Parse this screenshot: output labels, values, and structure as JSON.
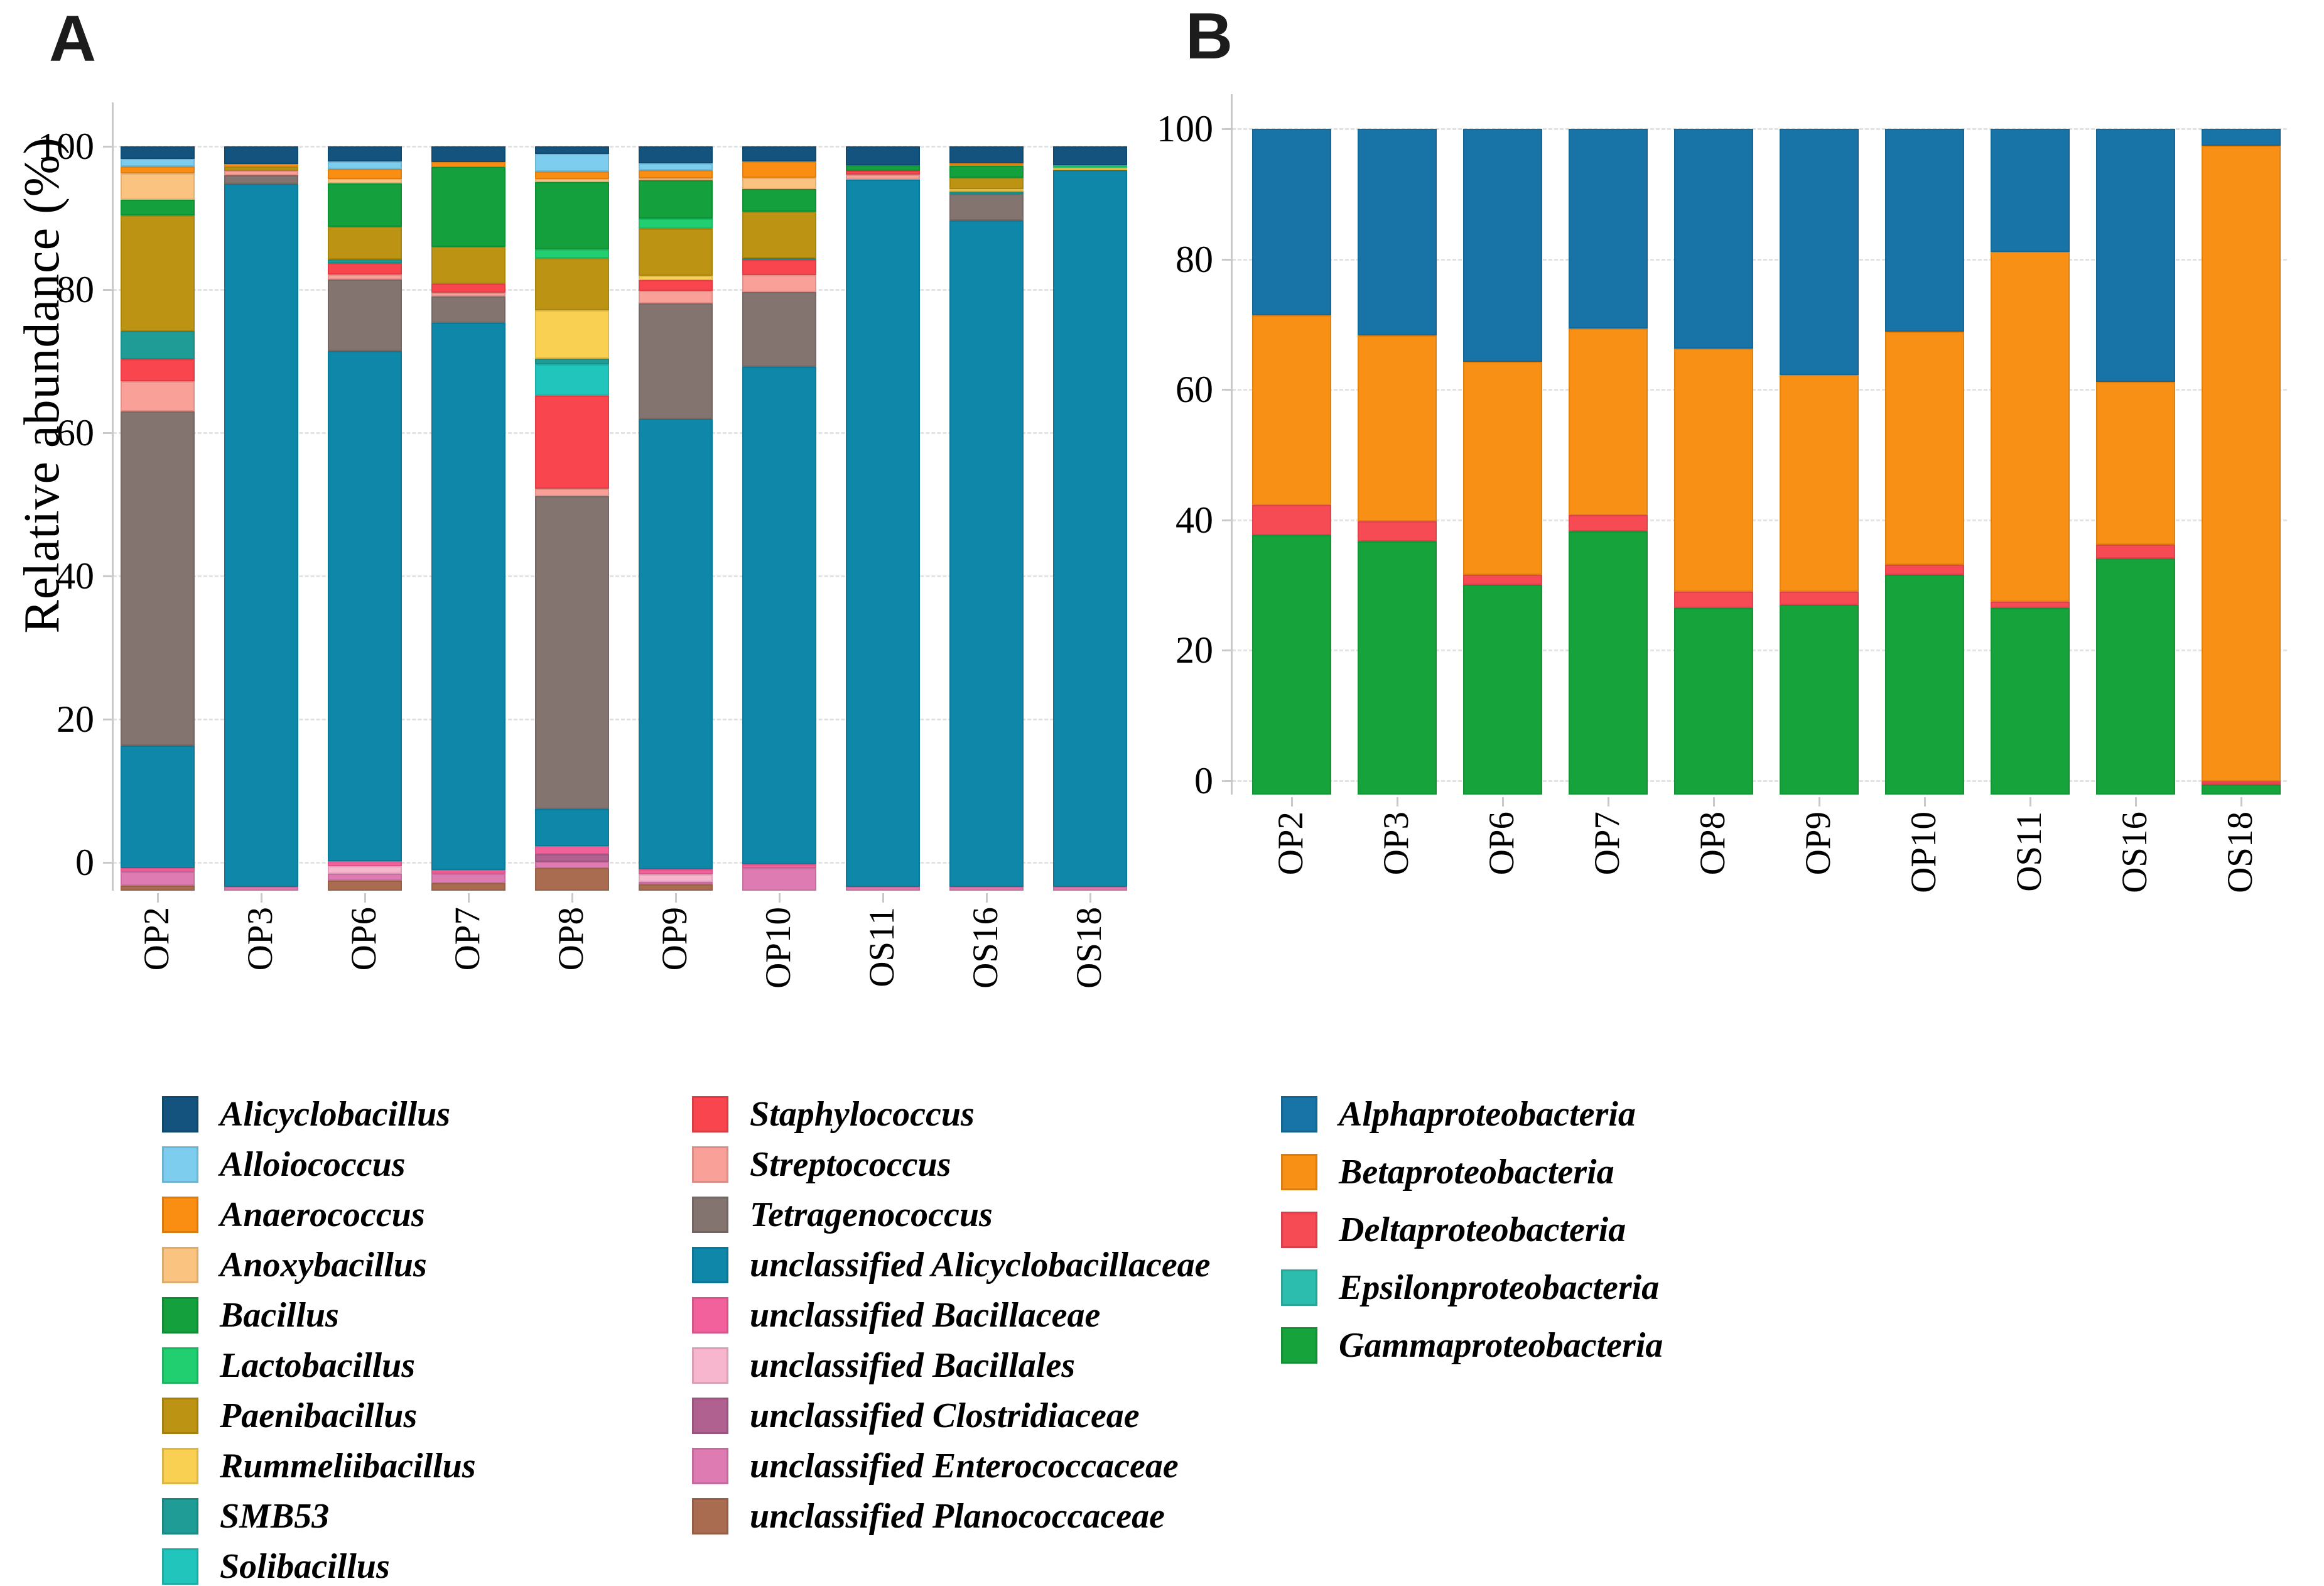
{
  "figure": {
    "panel_a_letter": "A",
    "panel_b_letter": "B",
    "ylabel": "Relative abundance (%)"
  },
  "chart_data": [
    {
      "panel": "A",
      "type": "bar",
      "stacked": true,
      "title": "A",
      "ylabel": "Relative abundance (%)",
      "ylim": [
        0,
        100
      ],
      "yticks": [
        100,
        80,
        60,
        40,
        20,
        0
      ],
      "grid": true,
      "legend_position": "bottom-left",
      "categories": [
        "OP2",
        "OP3",
        "OP6",
        "OP7",
        "OP8",
        "OP9",
        "OP10",
        "OS11",
        "OS16",
        "OS18"
      ],
      "series": [
        {
          "name": "Alicyclobacillus",
          "color": "#14537D",
          "values": [
            1.7,
            2.4,
            2.0,
            2.1,
            1.0,
            2.3,
            2.0,
            2.5,
            2.3,
            2.5
          ]
        },
        {
          "name": "Alloiococcus",
          "color": "#7CCDEE",
          "values": [
            1.0,
            0,
            1.0,
            0,
            2.4,
            0.9,
            0,
            0,
            0,
            0
          ]
        },
        {
          "name": "Anaerococcus",
          "color": "#F98E13",
          "values": [
            0.9,
            0.4,
            1.4,
            0.7,
            1.0,
            1.1,
            2.2,
            0,
            0.3,
            0
          ]
        },
        {
          "name": "Anoxybacillus",
          "color": "#FBC380",
          "values": [
            3.6,
            0,
            0.6,
            0,
            0.4,
            0.3,
            1.5,
            0,
            0,
            0
          ]
        },
        {
          "name": "Bacillus",
          "color": "#14A03C",
          "values": [
            2.1,
            0,
            5.8,
            10.7,
            9.0,
            5.1,
            3.1,
            0.8,
            1.6,
            0
          ]
        },
        {
          "name": "Lactobacillus",
          "color": "#21CE70",
          "values": [
            0,
            0,
            0,
            0,
            1.2,
            1.4,
            0,
            0,
            0,
            0.4
          ]
        },
        {
          "name": "Paenibacillus",
          "color": "#BC9313",
          "values": [
            15.5,
            0.5,
            4.4,
            5.0,
            7.0,
            6.3,
            6.2,
            0,
            1.5,
            0
          ]
        },
        {
          "name": "Rummeliibacillus",
          "color": "#F9D052",
          "values": [
            0,
            0,
            0,
            0,
            6.5,
            0.6,
            0,
            0,
            0.4,
            0.3
          ]
        },
        {
          "name": "SMB53",
          "color": "#1E9C95",
          "values": [
            3.8,
            0,
            0.5,
            0,
            0.8,
            0,
            0.3,
            0,
            0.3,
            0
          ]
        },
        {
          "name": "Solibacillus",
          "color": "#21C5BB",
          "values": [
            0,
            0,
            0,
            0,
            4.2,
            0,
            0,
            0,
            0,
            0
          ]
        },
        {
          "name": "Staphylococcus",
          "color": "#F9464E",
          "values": [
            3.0,
            0,
            1.5,
            1.2,
            12.5,
            1.4,
            2.0,
            0.5,
            0,
            0
          ]
        },
        {
          "name": "Streptococcus",
          "color": "#F9A099",
          "values": [
            4.0,
            0.6,
            0.7,
            0.5,
            1.0,
            1.7,
            2.3,
            0.7,
            0,
            0
          ]
        },
        {
          "name": "Tetragenococcus",
          "color": "#837470",
          "values": [
            44.9,
            1.2,
            9.6,
            3.5,
            42.0,
            15.5,
            10.0,
            0,
            3.6,
            0
          ]
        },
        {
          "name": "unclassified Alicyclobacillaceae",
          "color": "#0E87A9",
          "values": [
            16.5,
            94.4,
            68.5,
            73.5,
            5.0,
            60.5,
            66.9,
            95.0,
            89.5,
            96.3
          ]
        },
        {
          "name": "unclassified Bacillaceae",
          "color": "#F2619B",
          "values": [
            0.5,
            0,
            0.7,
            0.5,
            1.1,
            0.7,
            0.5,
            0,
            0,
            0
          ]
        },
        {
          "name": "unclassified Bacillales",
          "color": "#F7B6CD",
          "values": [
            0,
            0,
            1.0,
            0,
            0,
            1.0,
            0,
            0,
            0,
            0
          ]
        },
        {
          "name": "unclassified Clostridiaceae",
          "color": "#B06190",
          "values": [
            0,
            0,
            0,
            0,
            1.0,
            0,
            0,
            0,
            0,
            0
          ]
        },
        {
          "name": "unclassified Enterococcaceae",
          "color": "#DE7BB2",
          "values": [
            1.8,
            0.5,
            1.0,
            1.3,
            0.9,
            0.4,
            3.0,
            0.5,
            0.5,
            0.5
          ]
        },
        {
          "name": "unclassified Planococcaceae",
          "color": "#AA6C50",
          "values": [
            0.7,
            0,
            1.3,
            1.0,
            3.0,
            0.8,
            0,
            0,
            0,
            0
          ]
        }
      ]
    },
    {
      "panel": "B",
      "type": "bar",
      "stacked": true,
      "title": "B",
      "ylabel": "",
      "ylim": [
        0,
        100
      ],
      "yticks": [
        100,
        80,
        60,
        40,
        20,
        0
      ],
      "grid": true,
      "legend_position": "bottom-left",
      "categories": [
        "OP2",
        "OP3",
        "OP6",
        "OP7",
        "OP8",
        "OP9",
        "OP10",
        "OS11",
        "OS16",
        "OS18"
      ],
      "series": [
        {
          "name": "Alphaproteobacteria",
          "color": "#1874A6",
          "values": [
            28,
            31,
            35,
            30,
            33,
            37,
            30.5,
            18.5,
            38,
            2.5
          ]
        },
        {
          "name": "Betaproteobacteria",
          "color": "#F99016",
          "values": [
            28.5,
            28,
            32,
            28,
            36.5,
            32.5,
            35,
            52.5,
            24.5,
            95.5
          ]
        },
        {
          "name": "Deltaproteobacteria",
          "color": "#F64B54",
          "values": [
            4.5,
            3,
            1.5,
            2.5,
            2.5,
            2,
            1.5,
            1,
            2,
            0.5
          ]
        },
        {
          "name": "Epsilonproteobacteria",
          "color": "#2DBDAE",
          "values": [
            0,
            0,
            0,
            0,
            0,
            0,
            0,
            0,
            0,
            0
          ]
        },
        {
          "name": "Gammaproteobacteria",
          "color": "#17A33C",
          "values": [
            39,
            38,
            31.5,
            39.5,
            28,
            28.5,
            33,
            28,
            35.5,
            1.5
          ]
        }
      ]
    }
  ]
}
